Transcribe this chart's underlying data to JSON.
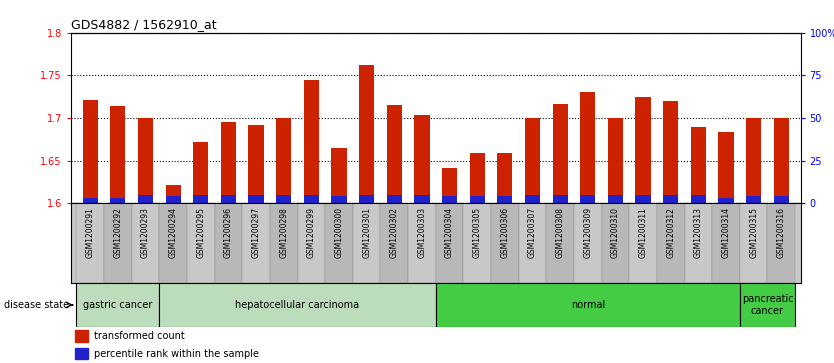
{
  "title": "GDS4882 / 1562910_at",
  "samples": [
    "GSM1200291",
    "GSM1200292",
    "GSM1200293",
    "GSM1200294",
    "GSM1200295",
    "GSM1200296",
    "GSM1200297",
    "GSM1200298",
    "GSM1200299",
    "GSM1200300",
    "GSM1200301",
    "GSM1200302",
    "GSM1200303",
    "GSM1200304",
    "GSM1200305",
    "GSM1200306",
    "GSM1200307",
    "GSM1200308",
    "GSM1200309",
    "GSM1200310",
    "GSM1200311",
    "GSM1200312",
    "GSM1200313",
    "GSM1200314",
    "GSM1200315",
    "GSM1200316"
  ],
  "transformed_count": [
    1.721,
    1.714,
    1.7,
    1.622,
    1.672,
    1.695,
    1.692,
    1.7,
    1.744,
    1.665,
    1.762,
    1.715,
    1.703,
    1.641,
    1.659,
    1.659,
    1.7,
    1.716,
    1.73,
    1.7,
    1.725,
    1.72,
    1.69,
    1.683,
    1.7,
    1.7
  ],
  "percentile_rank": [
    3,
    3,
    5,
    4,
    5,
    5,
    5,
    5,
    5,
    4,
    5,
    5,
    5,
    4,
    4,
    4,
    5,
    5,
    5,
    5,
    5,
    5,
    5,
    3,
    4,
    4
  ],
  "disease_groups": [
    {
      "label": "gastric cancer",
      "start": 0,
      "end": 3
    },
    {
      "label": "hepatocellular carcinoma",
      "start": 3,
      "end": 13
    },
    {
      "label": "normal",
      "start": 13,
      "end": 24
    },
    {
      "label": "pancreatic\ncancer",
      "start": 24,
      "end": 26
    }
  ],
  "group_colors": {
    "gastric cancer": "#BBDDBB",
    "hepatocellular carcinoma": "#BBDDBB",
    "normal": "#44CC44",
    "pancreatic\ncancer": "#44CC44"
  },
  "ylim_left": [
    1.6,
    1.8
  ],
  "ylim_right": [
    0,
    100
  ],
  "yticks_left": [
    1.6,
    1.65,
    1.7,
    1.75,
    1.8
  ],
  "yticks_right": [
    0,
    25,
    50,
    75,
    100
  ],
  "ytick_labels_right": [
    "0",
    "25",
    "50",
    "75",
    "100%"
  ],
  "bar_color": "#CC2200",
  "percentile_color": "#2222CC",
  "bg_color": "#FFFFFF",
  "xtick_bg_color": "#C8C8C8",
  "legend_items": [
    {
      "label": "transformed count",
      "color": "#CC2200"
    },
    {
      "label": "percentile rank within the sample",
      "color": "#2222CC"
    }
  ]
}
